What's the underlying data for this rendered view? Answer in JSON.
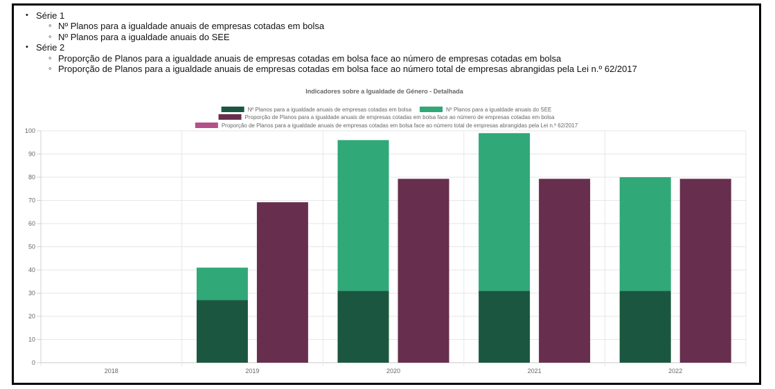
{
  "series_list": [
    {
      "label": "Série 1",
      "items": [
        "Nº Planos para a igualdade anuais de empresas cotadas em bolsa",
        "Nº Planos para a igualdade anuais do SEE"
      ]
    },
    {
      "label": "Série 2",
      "items": [
        "Proporção de Planos para a igualdade anuais de empresas cotadas em bolsa face ao número de empresas cotadas em bolsa",
        "Proporção de Planos para a igualdade anuais de empresas cotadas em bolsa face ao número total de empresas abrangidas pela Lei n.º 62/2017"
      ]
    }
  ],
  "chart_data": {
    "type": "bar",
    "title": "Indicadores sobre a Igualdade de Género - Detalhada",
    "categories": [
      "2018",
      "2019",
      "2020",
      "2021",
      "2022"
    ],
    "ylim": [
      0,
      100
    ],
    "yticks": [
      0,
      10,
      20,
      30,
      40,
      50,
      60,
      70,
      80,
      90,
      100
    ],
    "grid": true,
    "legend_position": "top",
    "series": [
      {
        "name": "Nº Planos para a igualdade anuais de empresas cotadas em bolsa",
        "color": "#1b5740",
        "stack": "a",
        "values": [
          0,
          27,
          31,
          31,
          31
        ]
      },
      {
        "name": "Nº Planos para a igualdade anuais do SEE",
        "color": "#30a877",
        "stack": "a",
        "values": [
          0,
          14,
          65,
          68,
          49
        ]
      },
      {
        "name": "Proporção de Planos para a igualdade anuais de empresas cotadas em bolsa face ao número de empresas cotadas em bolsa",
        "color": "#672f4d",
        "stack": "b",
        "values": [
          0,
          69.2,
          79.3,
          79.3,
          79.3
        ]
      },
      {
        "name": "Proporção de Planos para a igualdade anuais de empresas cotadas em bolsa face ao número total de empresas abrangidas pela Lei n.º 62/2017",
        "color": "#b5508a",
        "stack": "c",
        "values": [
          0,
          0,
          0,
          0,
          0
        ]
      }
    ]
  }
}
